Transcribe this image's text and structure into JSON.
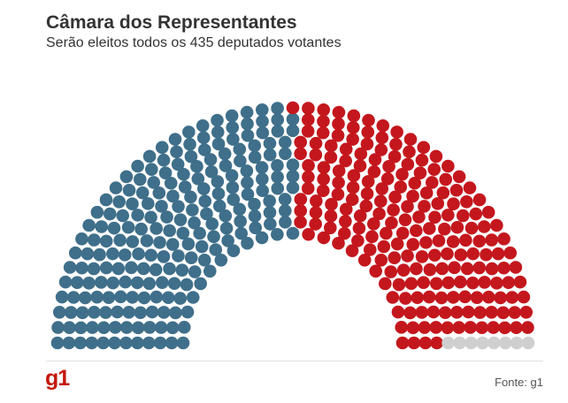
{
  "header": {
    "title": "Câmara dos Representantes",
    "subtitle": "Serão eleitos todos os 435 deputados votantes"
  },
  "chart_data": {
    "type": "parliament",
    "title": "Câmara dos Representantes",
    "subtitle": "Serão eleitos todos os 435 deputados votantes",
    "total_seats": 435,
    "groups": [
      {
        "color": "#3f6f8a",
        "seats": 220
      },
      {
        "color": "#c4171d",
        "seats": 207
      },
      {
        "color": "#cfcfcf",
        "seats": 8
      }
    ]
  },
  "footer": {
    "logo": "g1",
    "source": "Fonte: g1"
  }
}
